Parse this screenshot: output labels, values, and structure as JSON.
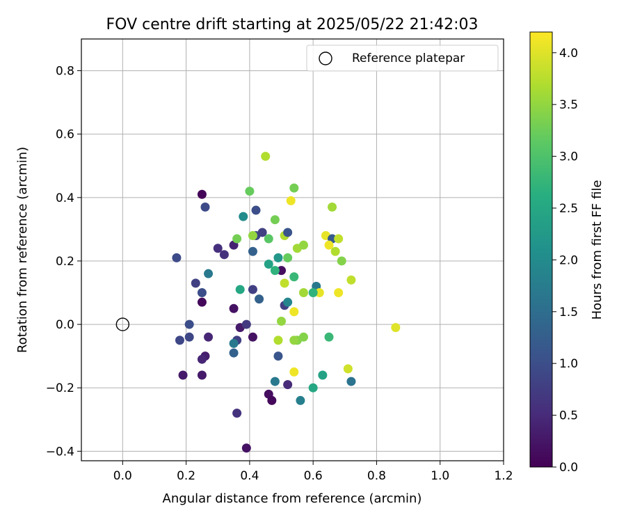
{
  "chart_data": {
    "type": "scatter",
    "title": "FOV centre drift starting at 2025/05/22 21:42:03",
    "xlabel": "Angular distance from reference (arcmin)",
    "ylabel": "Rotation from reference (arcmin)",
    "xlim": [
      -0.13,
      1.2
    ],
    "ylim": [
      -0.43,
      0.9
    ],
    "xticks": [
      "0.0",
      "0.2",
      "0.4",
      "0.6",
      "0.8",
      "1.0",
      "1.2"
    ],
    "yticks": [
      "−0.4",
      "−0.2",
      "0.0",
      "0.2",
      "0.4",
      "0.6",
      "0.8"
    ],
    "grid": true,
    "legend": {
      "placement": "top-right",
      "entry": "Reference platepar"
    },
    "reference_point": {
      "x": 0.0,
      "y": 0.0
    },
    "colorbar": {
      "label": "Hours from first FF file",
      "colormap": "viridis",
      "range": [
        0.0,
        4.2
      ],
      "ticks": [
        "0.0",
        "0.5",
        "1.0",
        "1.5",
        "2.0",
        "2.5",
        "3.0",
        "3.5",
        "4.0"
      ]
    },
    "points": [
      {
        "x": 0.25,
        "y": 0.41,
        "t": 0.05
      },
      {
        "x": 0.26,
        "y": 0.37,
        "t": 0.95
      },
      {
        "x": 0.17,
        "y": 0.21,
        "t": 0.95
      },
      {
        "x": 0.3,
        "y": 0.24,
        "t": 0.55
      },
      {
        "x": 0.32,
        "y": 0.22,
        "t": 0.6
      },
      {
        "x": 0.23,
        "y": 0.13,
        "t": 0.8
      },
      {
        "x": 0.25,
        "y": 0.1,
        "t": 1.0
      },
      {
        "x": 0.27,
        "y": 0.16,
        "t": 1.7
      },
      {
        "x": 0.25,
        "y": 0.07,
        "t": 0.1
      },
      {
        "x": 0.21,
        "y": 0.0,
        "t": 1.0
      },
      {
        "x": 0.18,
        "y": -0.05,
        "t": 0.9
      },
      {
        "x": 0.21,
        "y": -0.04,
        "t": 0.9
      },
      {
        "x": 0.27,
        "y": -0.04,
        "t": 0.45
      },
      {
        "x": 0.26,
        "y": -0.1,
        "t": 0.35
      },
      {
        "x": 0.25,
        "y": -0.11,
        "t": 0.45
      },
      {
        "x": 0.19,
        "y": -0.16,
        "t": 0.3
      },
      {
        "x": 0.25,
        "y": -0.16,
        "t": 0.3
      },
      {
        "x": 0.35,
        "y": 0.25,
        "t": 0.4
      },
      {
        "x": 0.36,
        "y": 0.27,
        "t": 3.3
      },
      {
        "x": 0.38,
        "y": 0.34,
        "t": 2.0
      },
      {
        "x": 0.4,
        "y": 0.42,
        "t": 3.2
      },
      {
        "x": 0.45,
        "y": 0.53,
        "t": 3.7
      },
      {
        "x": 0.42,
        "y": 0.36,
        "t": 1.0
      },
      {
        "x": 0.42,
        "y": 0.28,
        "t": 0.9
      },
      {
        "x": 0.44,
        "y": 0.29,
        "t": 0.8
      },
      {
        "x": 0.41,
        "y": 0.28,
        "t": 3.5
      },
      {
        "x": 0.41,
        "y": 0.23,
        "t": 1.3
      },
      {
        "x": 0.46,
        "y": 0.27,
        "t": 3.1
      },
      {
        "x": 0.37,
        "y": 0.11,
        "t": 2.5
      },
      {
        "x": 0.41,
        "y": 0.11,
        "t": 0.8
      },
      {
        "x": 0.43,
        "y": 0.08,
        "t": 1.3
      },
      {
        "x": 0.35,
        "y": 0.05,
        "t": 0.2
      },
      {
        "x": 0.37,
        "y": -0.01,
        "t": 0.3
      },
      {
        "x": 0.39,
        "y": 0.0,
        "t": 0.7
      },
      {
        "x": 0.41,
        "y": -0.04,
        "t": 0.2
      },
      {
        "x": 0.36,
        "y": -0.05,
        "t": 0.8
      },
      {
        "x": 0.35,
        "y": -0.06,
        "t": 1.7
      },
      {
        "x": 0.35,
        "y": -0.09,
        "t": 1.3
      },
      {
        "x": 0.36,
        "y": -0.28,
        "t": 0.6
      },
      {
        "x": 0.39,
        "y": -0.39,
        "t": 0.2
      },
      {
        "x": 0.46,
        "y": -0.22,
        "t": 0.15
      },
      {
        "x": 0.47,
        "y": -0.24,
        "t": 0.1
      },
      {
        "x": 0.48,
        "y": -0.18,
        "t": 1.7
      },
      {
        "x": 0.52,
        "y": -0.19,
        "t": 0.5
      },
      {
        "x": 0.49,
        "y": -0.1,
        "t": 1.1
      },
      {
        "x": 0.49,
        "y": -0.05,
        "t": 3.7
      },
      {
        "x": 0.5,
        "y": 0.01,
        "t": 3.5
      },
      {
        "x": 0.51,
        "y": 0.06,
        "t": 0.8
      },
      {
        "x": 0.52,
        "y": 0.07,
        "t": 1.9
      },
      {
        "x": 0.5,
        "y": 0.17,
        "t": 0.15
      },
      {
        "x": 0.46,
        "y": 0.19,
        "t": 2.4
      },
      {
        "x": 0.48,
        "y": 0.17,
        "t": 2.7
      },
      {
        "x": 0.49,
        "y": 0.21,
        "t": 2.2
      },
      {
        "x": 0.48,
        "y": 0.33,
        "t": 3.3
      },
      {
        "x": 0.51,
        "y": 0.28,
        "t": 3.7
      },
      {
        "x": 0.52,
        "y": 0.29,
        "t": 1.1
      },
      {
        "x": 0.52,
        "y": 0.21,
        "t": 3.2
      },
      {
        "x": 0.51,
        "y": 0.13,
        "t": 3.8
      },
      {
        "x": 0.54,
        "y": 0.15,
        "t": 2.8
      },
      {
        "x": 0.54,
        "y": 0.43,
        "t": 3.3
      },
      {
        "x": 0.53,
        "y": 0.39,
        "t": 4.1
      },
      {
        "x": 0.55,
        "y": 0.24,
        "t": 3.6
      },
      {
        "x": 0.57,
        "y": 0.25,
        "t": 3.5
      },
      {
        "x": 0.57,
        "y": 0.1,
        "t": 3.6
      },
      {
        "x": 0.54,
        "y": 0.04,
        "t": 4.1
      },
      {
        "x": 0.55,
        "y": -0.05,
        "t": 3.4
      },
      {
        "x": 0.54,
        "y": -0.05,
        "t": 3.5
      },
      {
        "x": 0.57,
        "y": -0.04,
        "t": 3.4
      },
      {
        "x": 0.56,
        "y": -0.24,
        "t": 1.8
      },
      {
        "x": 0.54,
        "y": -0.15,
        "t": 4.1
      },
      {
        "x": 0.6,
        "y": -0.2,
        "t": 2.5
      },
      {
        "x": 0.63,
        "y": -0.16,
        "t": 2.4
      },
      {
        "x": 0.65,
        "y": -0.04,
        "t": 2.8
      },
      {
        "x": 0.61,
        "y": 0.12,
        "t": 1.7
      },
      {
        "x": 0.62,
        "y": 0.1,
        "t": 4.05
      },
      {
        "x": 0.6,
        "y": 0.1,
        "t": 2.7
      },
      {
        "x": 0.66,
        "y": 0.37,
        "t": 3.6
      },
      {
        "x": 0.64,
        "y": 0.28,
        "t": 4.05
      },
      {
        "x": 0.66,
        "y": 0.27,
        "t": 1.2
      },
      {
        "x": 0.68,
        "y": 0.27,
        "t": 3.8
      },
      {
        "x": 0.65,
        "y": 0.25,
        "t": 4.1
      },
      {
        "x": 0.67,
        "y": 0.23,
        "t": 3.7
      },
      {
        "x": 0.69,
        "y": 0.2,
        "t": 3.4
      },
      {
        "x": 0.68,
        "y": 0.1,
        "t": 4.1
      },
      {
        "x": 0.72,
        "y": 0.14,
        "t": 3.8
      },
      {
        "x": 0.71,
        "y": -0.14,
        "t": 3.9
      },
      {
        "x": 0.72,
        "y": -0.18,
        "t": 1.6
      },
      {
        "x": 0.86,
        "y": -0.01,
        "t": 4.0
      }
    ]
  }
}
